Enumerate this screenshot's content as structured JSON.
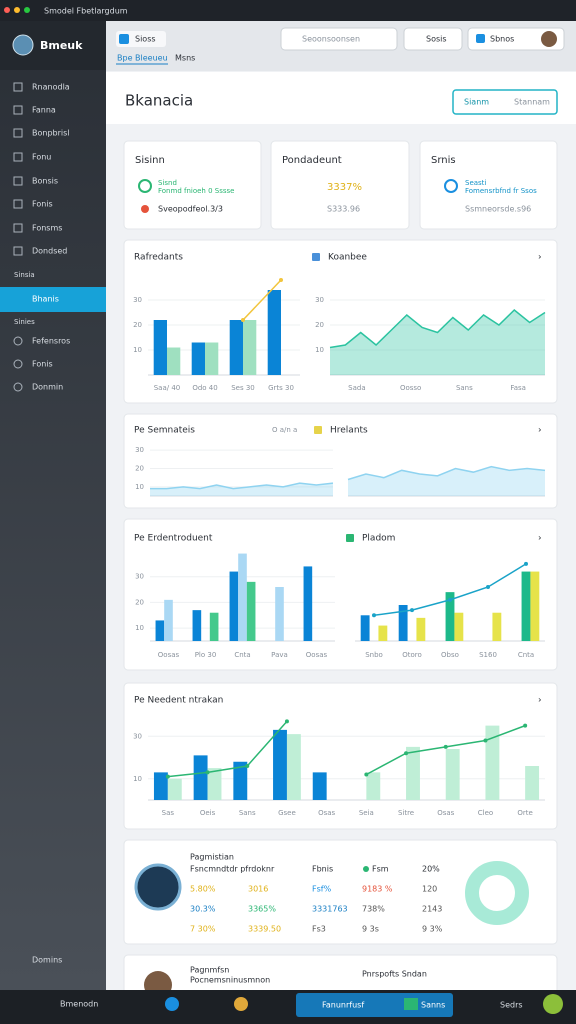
{
  "window": {
    "title": "Smodel Fbetlargdum"
  },
  "toolbar": {
    "tab": "Sioss",
    "search": "Seoonsoonsen",
    "button1": "Sosis",
    "button2": "Sbnos",
    "tabs": [
      "Bpe Bleeueu",
      "Msns"
    ]
  },
  "sidebar": {
    "brand": "Bmeuk",
    "items": [
      "Rnanodla",
      "Fanna",
      "Bonpbrisl",
      "Fonu",
      "Bonsis",
      "Fonis",
      "Fonsms",
      "Dondsed"
    ],
    "section": "Sinsia",
    "active": "Bhanis",
    "section2": "Sinies",
    "items2": [
      "Fefensros",
      "Fonis",
      "Donmin"
    ],
    "footer": "Domins"
  },
  "header": {
    "title": "Bkanacia",
    "button": "Sianm",
    "button_secondary": "Stannam"
  },
  "cards": [
    {
      "title": "Sisinn",
      "line1": "Sisnd",
      "line2": "Fonmd fnioeh 0 Sssse",
      "line3": "Sveopodfeol.3/3"
    },
    {
      "title": "Pondadeunt",
      "line1": "3337%",
      "line2": "S333.96"
    },
    {
      "title": "Srnis",
      "line1": "Seasti",
      "line2": "Fomensrbfnd fr Ssos",
      "line3": "Ssmneorsde.s96"
    }
  ],
  "charts": [
    {
      "title": "Rafredants",
      "yticks": [
        30,
        20,
        10
      ],
      "ylim": [
        0,
        40
      ],
      "categories": [
        "Saa/ 40",
        "Odo 40",
        "Ses 30",
        "Grts 30"
      ],
      "series": [
        {
          "kind": "bar",
          "color": "#0a84d6",
          "values": [
            22,
            13,
            22,
            34
          ]
        },
        {
          "kind": "bar",
          "color": "#9fe0c0",
          "values": [
            11,
            13,
            22,
            null
          ]
        },
        {
          "kind": "line",
          "color": "#f2c53d",
          "values": [
            null,
            null,
            22,
            38
          ]
        }
      ]
    },
    {
      "title": "Koanbee",
      "yticks": [
        30,
        20,
        10
      ],
      "ylim": [
        0,
        40
      ],
      "categories": [
        "Sada",
        "Oosso",
        "Sans",
        "Fasa"
      ],
      "series": [
        {
          "kind": "area",
          "color": "#2bc3a0",
          "values": [
            11,
            12,
            17,
            12,
            18,
            24,
            19,
            17,
            23,
            18,
            24,
            20,
            26,
            21,
            25
          ]
        }
      ]
    },
    {
      "title": "Pe Semnateis",
      "subtitle": "O a/n a",
      "yticks": [
        30,
        20,
        10
      ],
      "ylim": [
        5,
        35
      ],
      "series": [
        {
          "kind": "area",
          "color": "#8fd3f0",
          "values": [
            9,
            9,
            10,
            9,
            11,
            9,
            10,
            11,
            10,
            12,
            11,
            12
          ]
        }
      ]
    },
    {
      "title": "Hrelants",
      "yticks": [],
      "ylim": [
        5,
        35
      ],
      "series": [
        {
          "kind": "area",
          "color": "#8fd3f0",
          "values": [
            14,
            17,
            15,
            19,
            17,
            16,
            20,
            18,
            21,
            19,
            20,
            19
          ]
        }
      ]
    },
    {
      "title": "Pe Erdentroduent",
      "yticks": [
        30,
        20,
        10
      ],
      "ylim": [
        5,
        40
      ],
      "categories": [
        "Oosas",
        "Plo 30",
        "Cnta",
        "Pava",
        "Oosas"
      ],
      "series": [
        {
          "kind": "bar",
          "color": "#0a84d6",
          "values": [
            13,
            17,
            32,
            null,
            34
          ]
        },
        {
          "kind": "bar",
          "color": "#aad8f4",
          "values": [
            21,
            null,
            39,
            26,
            null
          ]
        },
        {
          "kind": "bar",
          "color": "#44c98c",
          "values": [
            null,
            16,
            28,
            null,
            null
          ]
        }
      ]
    },
    {
      "title": "Pladom",
      "yticks": [],
      "ylim": [
        5,
        40
      ],
      "categories": [
        "Snbo",
        "Otoro",
        "Obso",
        "S160",
        "Cnta"
      ],
      "series": [
        {
          "kind": "bar",
          "color": "#0a84d6",
          "values": [
            15,
            19,
            null,
            null,
            null
          ]
        },
        {
          "kind": "bar",
          "color": "#1db98a",
          "values": [
            null,
            null,
            24,
            null,
            32
          ]
        },
        {
          "kind": "bar",
          "color": "#e6e34a",
          "values": [
            11,
            14,
            16,
            16,
            32
          ]
        },
        {
          "kind": "line",
          "color": "#1aa3c8",
          "values": [
            15,
            17,
            21,
            26,
            35
          ]
        }
      ]
    },
    {
      "title": "Pe Needent ntrakan",
      "yticks": [
        30,
        10
      ],
      "ylim": [
        0,
        40
      ],
      "categories": [
        "Sas",
        "Oeis",
        "Sans",
        "Gsee",
        "Osas",
        "Seia",
        "Sitre",
        "Osas",
        "Cleo",
        "Orte"
      ],
      "series": [
        {
          "kind": "bar",
          "color": "#0a84d6",
          "values": [
            13,
            21,
            18,
            33,
            13,
            null,
            null,
            null,
            null,
            null
          ]
        },
        {
          "kind": "bar",
          "color": "#bfeed6",
          "values": [
            10,
            15,
            null,
            31,
            null,
            13,
            25,
            24,
            35,
            16
          ]
        },
        {
          "kind": "line",
          "color": "#2bb673",
          "values": [
            11,
            13,
            16,
            37,
            null,
            12,
            22,
            25,
            28,
            35
          ]
        }
      ]
    }
  ],
  "summary": {
    "title": "Pagmistian",
    "subtitle": "Fsncmndtdr pfrdoknr",
    "col1": "Fbnis",
    "col2": "Fsm",
    "col3": "20%",
    "rows": [
      [
        "5.80%",
        "3016",
        "Fsf%",
        "9183 %",
        "120"
      ],
      [
        "30.3%",
        "3365%",
        "3331763",
        "738%",
        "2143"
      ],
      [
        "7 30%",
        "3339.50",
        "Fs3",
        "9 3s",
        "9 3%"
      ]
    ]
  },
  "footer_panel": {
    "title": "Pagnmfsn",
    "subtitle": "Pocnemsninusmnon",
    "right": "Pnrspofts Sndan"
  },
  "taskbar": {
    "start": "Bmenodn",
    "app": "Fanunrfusf",
    "app2": "Sanns",
    "clock": "Sedrs"
  }
}
